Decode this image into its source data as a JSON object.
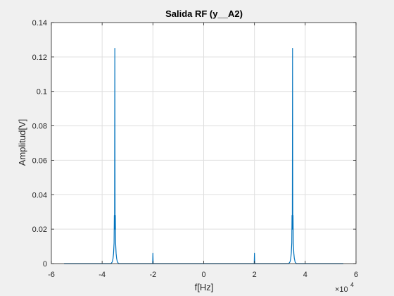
{
  "chart_data": {
    "type": "line",
    "title": "Salida RF (y__A2)",
    "xlabel": "f[Hz]",
    "ylabel": "Amplitud[V]",
    "x_multiplier_label": "×10",
    "x_multiplier_exp": "4",
    "xlim": [
      -6,
      6
    ],
    "ylim": [
      0,
      0.14
    ],
    "x_ticks": [
      -6,
      -4,
      -2,
      0,
      2,
      4,
      6
    ],
    "x_tick_labels": [
      "-6",
      "-4",
      "-2",
      "0",
      "2",
      "4",
      "6"
    ],
    "y_ticks": [
      0,
      0.02,
      0.04,
      0.06,
      0.08,
      0.1,
      0.12,
      0.14
    ],
    "y_tick_labels": [
      "0",
      "0.02",
      "0.04",
      "0.06",
      "0.08",
      "0.1",
      "0.12",
      "0.14"
    ],
    "grid": true,
    "series": [
      {
        "color": "#0072bd",
        "x": [
          -5.5,
          -3.65,
          -3.6,
          -3.57,
          -3.55,
          -3.53,
          -3.52,
          -3.51,
          -3.5,
          -3.49,
          -3.48,
          -3.47,
          -3.45,
          -3.43,
          -3.4,
          -3.35,
          -2.01,
          -2.0,
          -1.99,
          1.99,
          2.0,
          2.01,
          3.35,
          3.4,
          3.43,
          3.45,
          3.47,
          3.48,
          3.49,
          3.5,
          3.51,
          3.52,
          3.53,
          3.55,
          3.57,
          3.6,
          3.65,
          5.5
        ],
        "y": [
          0,
          0,
          0.001,
          0.003,
          0.006,
          0.012,
          0.028,
          0.02,
          0.125,
          0.02,
          0.028,
          0.012,
          0.006,
          0.003,
          0.001,
          0,
          0,
          0.006,
          0,
          0,
          0.006,
          0,
          0,
          0.001,
          0.003,
          0.006,
          0.012,
          0.028,
          0.02,
          0.125,
          0.02,
          0.028,
          0.012,
          0.006,
          0.003,
          0.001,
          0,
          0
        ]
      }
    ]
  }
}
